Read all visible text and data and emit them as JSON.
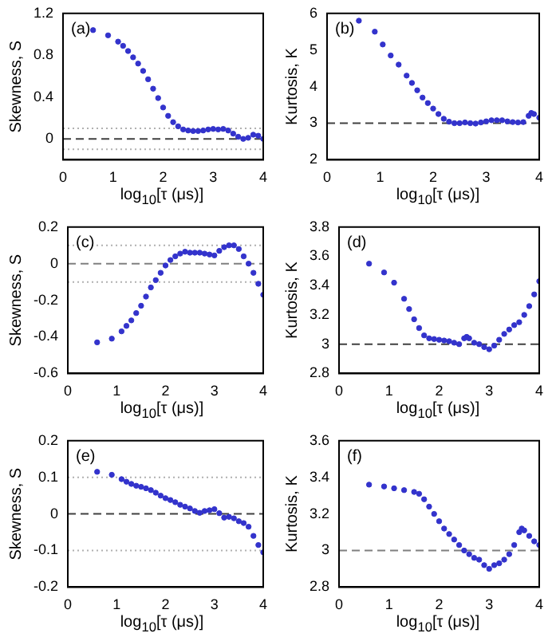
{
  "chart_data": [
    {
      "type": "scatter",
      "xlabel": "log$_{10}$[τ (μs)]",
      "ylabel": "Skewness, S",
      "annotations": [
        "(a)"
      ],
      "marker": "circle",
      "grid": false,
      "xlim": [
        0,
        4
      ],
      "xticks": [
        0,
        1,
        2,
        3,
        4
      ],
      "ylim": [
        -0.2,
        1.2
      ],
      "yticks": [
        0,
        0.4,
        0.8,
        1.2
      ],
      "ref_lines": [
        {
          "axis": "y",
          "value": 0,
          "color": "#404040",
          "line_style": "dashed"
        },
        {
          "axis": "y",
          "value": 0.1,
          "color": "#b0b0b0",
          "line_style": "dotted"
        },
        {
          "axis": "y",
          "value": -0.1,
          "color": "#b0b0b0",
          "line_style": "dotted"
        }
      ],
      "series": [
        {
          "color": "#3333cc",
          "x": [
            0.6,
            0.9,
            1.1,
            1.2,
            1.3,
            1.4,
            1.5,
            1.6,
            1.7,
            1.8,
            1.9,
            2.0,
            2.1,
            2.2,
            2.3,
            2.4,
            2.5,
            2.6,
            2.7,
            2.8,
            2.9,
            3.0,
            3.1,
            3.2,
            3.3,
            3.4,
            3.5,
            3.6,
            3.7,
            3.8,
            3.9,
            4.0
          ],
          "values": [
            1.04,
            0.99,
            0.93,
            0.89,
            0.84,
            0.78,
            0.72,
            0.65,
            0.57,
            0.48,
            0.39,
            0.3,
            0.22,
            0.16,
            0.12,
            0.09,
            0.08,
            0.075,
            0.075,
            0.08,
            0.09,
            0.095,
            0.09,
            0.095,
            0.08,
            0.05,
            0.02,
            0.0,
            0.01,
            0.04,
            0.03,
            0.0
          ]
        }
      ]
    },
    {
      "type": "scatter",
      "xlabel": "log$_{10}$[τ (μs)]",
      "ylabel": "Kurtosis, K",
      "annotations": [
        "(b)"
      ],
      "marker": "circle",
      "grid": false,
      "xlim": [
        0,
        4
      ],
      "xticks": [
        0,
        1,
        2,
        3,
        4
      ],
      "ylim": [
        2,
        6
      ],
      "yticks": [
        2,
        3,
        4,
        5,
        6
      ],
      "ref_lines": [
        {
          "axis": "y",
          "value": 3,
          "color": "#404040",
          "line_style": "dashed"
        }
      ],
      "series": [
        {
          "color": "#3333cc",
          "x": [
            0.6,
            0.9,
            1.05,
            1.2,
            1.35,
            1.5,
            1.6,
            1.7,
            1.8,
            1.9,
            2.0,
            2.1,
            2.2,
            2.3,
            2.4,
            2.5,
            2.6,
            2.7,
            2.8,
            2.9,
            3.0,
            3.1,
            3.2,
            3.3,
            3.4,
            3.5,
            3.6,
            3.7,
            3.8,
            3.85,
            3.9,
            4.0
          ],
          "values": [
            5.8,
            5.5,
            5.15,
            4.85,
            4.6,
            4.3,
            4.1,
            3.9,
            3.7,
            3.55,
            3.4,
            3.25,
            3.12,
            3.04,
            3.0,
            3.0,
            3.02,
            3.0,
            2.99,
            3.02,
            3.05,
            3.08,
            3.08,
            3.08,
            3.05,
            3.03,
            3.02,
            3.03,
            3.2,
            3.28,
            3.25,
            3.15
          ]
        }
      ]
    },
    {
      "type": "scatter",
      "xlabel": "log$_{10}$[τ (μs)]",
      "ylabel": "Skewness, S",
      "annotations": [
        "(c)"
      ],
      "marker": "circle",
      "grid": false,
      "xlim": [
        0,
        4
      ],
      "xticks": [
        0,
        1,
        2,
        3,
        4
      ],
      "ylim": [
        -0.6,
        0.2
      ],
      "yticks": [
        -0.6,
        -0.4,
        -0.2,
        0,
        0.2
      ],
      "ref_lines": [
        {
          "axis": "y",
          "value": 0,
          "color": "#808080",
          "line_style": "dashed"
        },
        {
          "axis": "y",
          "value": 0.1,
          "color": "#b0b0b0",
          "line_style": "dotted"
        },
        {
          "axis": "y",
          "value": -0.1,
          "color": "#b0b0b0",
          "line_style": "dotted"
        }
      ],
      "series": [
        {
          "color": "#3333cc",
          "x": [
            0.6,
            0.9,
            1.1,
            1.2,
            1.3,
            1.4,
            1.5,
            1.6,
            1.7,
            1.8,
            1.9,
            2.0,
            2.1,
            2.2,
            2.3,
            2.4,
            2.5,
            2.6,
            2.7,
            2.8,
            2.9,
            3.0,
            3.1,
            3.2,
            3.3,
            3.4,
            3.5,
            3.6,
            3.7,
            3.8,
            3.9,
            4.0
          ],
          "values": [
            -0.43,
            -0.41,
            -0.37,
            -0.34,
            -0.31,
            -0.27,
            -0.23,
            -0.18,
            -0.13,
            -0.09,
            -0.05,
            -0.01,
            0.02,
            0.04,
            0.055,
            0.065,
            0.06,
            0.06,
            0.06,
            0.055,
            0.05,
            0.045,
            0.07,
            0.09,
            0.1,
            0.1,
            0.08,
            0.04,
            0.0,
            -0.05,
            -0.11,
            -0.17
          ]
        }
      ]
    },
    {
      "type": "scatter",
      "xlabel": "log$_{10}$[τ (μs)]",
      "ylabel": "Kurtosis, K",
      "annotations": [
        "(d)"
      ],
      "marker": "circle",
      "grid": false,
      "xlim": [
        0,
        4
      ],
      "xticks": [
        0,
        1,
        2,
        3,
        4
      ],
      "ylim": [
        2.8,
        3.8
      ],
      "yticks": [
        2.8,
        3,
        3.2,
        3.4,
        3.6,
        3.8
      ],
      "ref_lines": [
        {
          "axis": "y",
          "value": 3,
          "color": "#404040",
          "line_style": "dashed"
        }
      ],
      "series": [
        {
          "color": "#3333cc",
          "x": [
            0.6,
            0.9,
            1.1,
            1.3,
            1.4,
            1.5,
            1.6,
            1.7,
            1.8,
            1.9,
            2.0,
            2.1,
            2.2,
            2.3,
            2.4,
            2.5,
            2.55,
            2.6,
            2.7,
            2.8,
            2.9,
            3.0,
            3.1,
            3.2,
            3.3,
            3.4,
            3.5,
            3.6,
            3.7,
            3.8,
            3.9,
            4.0
          ],
          "values": [
            3.55,
            3.49,
            3.42,
            3.31,
            3.24,
            3.17,
            3.11,
            3.06,
            3.04,
            3.035,
            3.03,
            3.025,
            3.02,
            3.01,
            3.0,
            3.04,
            3.05,
            3.04,
            3.01,
            3.0,
            2.98,
            2.965,
            2.99,
            3.03,
            3.07,
            3.1,
            3.13,
            3.15,
            3.2,
            3.26,
            3.34,
            3.43
          ]
        }
      ]
    },
    {
      "type": "scatter",
      "xlabel": "log$_{10}$[τ (μs)]",
      "ylabel": "Skewness, S",
      "annotations": [
        "(e)"
      ],
      "marker": "circle",
      "grid": false,
      "xlim": [
        0,
        4
      ],
      "xticks": [
        0,
        1,
        2,
        3,
        4
      ],
      "ylim": [
        -0.2,
        0.2
      ],
      "yticks": [
        -0.2,
        -0.1,
        0,
        0.1,
        0.2
      ],
      "ref_lines": [
        {
          "axis": "y",
          "value": 0,
          "color": "#404040",
          "line_style": "dashed"
        },
        {
          "axis": "y",
          "value": 0.1,
          "color": "#b0b0b0",
          "line_style": "dotted"
        },
        {
          "axis": "y",
          "value": -0.1,
          "color": "#b0b0b0",
          "line_style": "dotted"
        }
      ],
      "series": [
        {
          "color": "#3333cc",
          "x": [
            0.6,
            0.9,
            1.1,
            1.2,
            1.3,
            1.4,
            1.5,
            1.6,
            1.7,
            1.8,
            1.9,
            2.0,
            2.1,
            2.2,
            2.3,
            2.4,
            2.5,
            2.6,
            2.7,
            2.8,
            2.9,
            3.0,
            3.1,
            3.2,
            3.3,
            3.4,
            3.5,
            3.6,
            3.7,
            3.8,
            3.9,
            4.0
          ],
          "values": [
            0.115,
            0.107,
            0.095,
            0.088,
            0.082,
            0.077,
            0.074,
            0.07,
            0.065,
            0.058,
            0.05,
            0.043,
            0.038,
            0.032,
            0.025,
            0.02,
            0.015,
            0.008,
            0.003,
            0.008,
            0.01,
            0.013,
            0.002,
            -0.01,
            -0.008,
            -0.012,
            -0.02,
            -0.025,
            -0.035,
            -0.06,
            -0.085,
            -0.105
          ]
        }
      ]
    },
    {
      "type": "scatter",
      "xlabel": "log$_{10}$[τ (μs)]",
      "ylabel": "Kurtosis, K",
      "annotations": [
        "(f)"
      ],
      "marker": "circle",
      "grid": false,
      "xlim": [
        0,
        4
      ],
      "xticks": [
        0,
        1,
        2,
        3,
        4
      ],
      "ylim": [
        2.8,
        3.6
      ],
      "yticks": [
        2.8,
        3,
        3.2,
        3.4,
        3.6
      ],
      "ref_lines": [
        {
          "axis": "y",
          "value": 3,
          "color": "#808080",
          "line_style": "dashed"
        }
      ],
      "series": [
        {
          "color": "#3333cc",
          "x": [
            0.6,
            0.9,
            1.1,
            1.3,
            1.5,
            1.6,
            1.7,
            1.8,
            1.9,
            2.0,
            2.1,
            2.2,
            2.3,
            2.4,
            2.5,
            2.6,
            2.7,
            2.8,
            2.9,
            3.0,
            3.1,
            3.2,
            3.3,
            3.4,
            3.5,
            3.6,
            3.65,
            3.7,
            3.8,
            3.9,
            4.0
          ],
          "values": [
            3.36,
            3.35,
            3.34,
            3.33,
            3.32,
            3.31,
            3.28,
            3.24,
            3.2,
            3.16,
            3.12,
            3.09,
            3.06,
            3.03,
            3.0,
            2.98,
            2.96,
            2.95,
            2.92,
            2.9,
            2.92,
            2.93,
            2.95,
            2.98,
            3.03,
            3.1,
            3.12,
            3.11,
            3.08,
            3.05,
            3.03
          ]
        }
      ]
    }
  ]
}
